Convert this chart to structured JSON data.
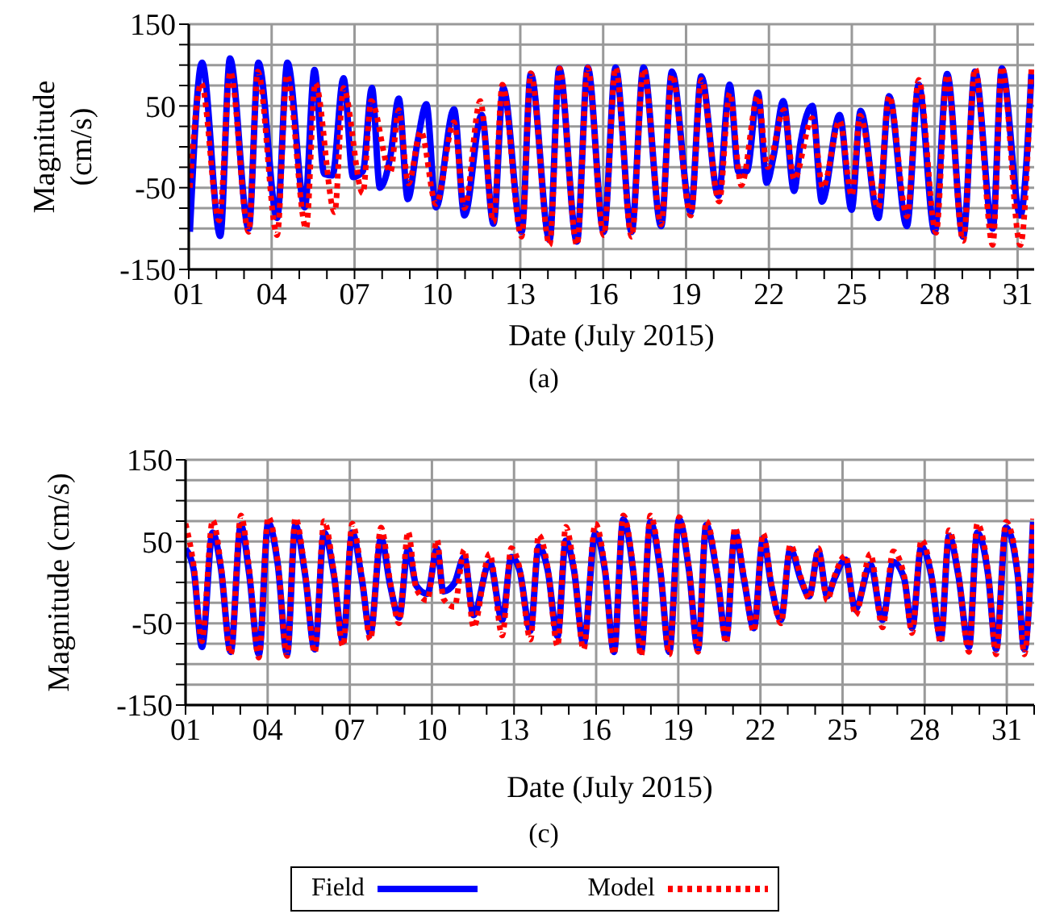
{
  "chart_data": [
    {
      "type": "line",
      "xlabel": "Date (July 2015)",
      "ylabel": "Magnitude (cm/s)",
      "annotations": [
        "(a)"
      ],
      "xlim": [
        1,
        31.6
      ],
      "ylim": [
        -150,
        150
      ],
      "xticks": [
        {
          "value": 1,
          "label": "01"
        },
        {
          "value": 2,
          "label": null
        },
        {
          "value": 3,
          "label": null
        },
        {
          "value": 4,
          "label": "04"
        },
        {
          "value": 5,
          "label": null
        },
        {
          "value": 6,
          "label": null
        },
        {
          "value": 7,
          "label": "07"
        },
        {
          "value": 8,
          "label": null
        },
        {
          "value": 9,
          "label": null
        },
        {
          "value": 10,
          "label": "10"
        },
        {
          "value": 11,
          "label": null
        },
        {
          "value": 12,
          "label": null
        },
        {
          "value": 13,
          "label": "13"
        },
        {
          "value": 14,
          "label": null
        },
        {
          "value": 15,
          "label": null
        },
        {
          "value": 16,
          "label": "16"
        },
        {
          "value": 17,
          "label": null
        },
        {
          "value": 18,
          "label": null
        },
        {
          "value": 19,
          "label": "19"
        },
        {
          "value": 20,
          "label": null
        },
        {
          "value": 21,
          "label": null
        },
        {
          "value": 22,
          "label": "22"
        },
        {
          "value": 23,
          "label": null
        },
        {
          "value": 24,
          "label": null
        },
        {
          "value": 25,
          "label": "25"
        },
        {
          "value": 26,
          "label": null
        },
        {
          "value": 27,
          "label": null
        },
        {
          "value": 28,
          "label": "28"
        },
        {
          "value": 29,
          "label": null
        },
        {
          "value": 30,
          "label": null
        },
        {
          "value": 31,
          "label": "31"
        }
      ],
      "yticks": [
        150,
        {
          "value": 125,
          "label": null
        },
        {
          "value": 100,
          "label": null
        },
        {
          "value": 75,
          "label": null
        },
        50,
        {
          "value": 25,
          "label": null
        },
        {
          "value": 0,
          "label": null
        },
        {
          "value": -25,
          "label": null
        },
        -50,
        {
          "value": -75,
          "label": null
        },
        {
          "value": -100,
          "label": null
        },
        {
          "value": -125,
          "label": null
        },
        -150
      ],
      "grid": true,
      "legend": false,
      "series": [
        {
          "color": "#0000ff",
          "line_style": "solid",
          "x": [
            1.04,
            1.48,
            2.14,
            2.49,
            3.17,
            3.52,
            4.2,
            4.57,
            5.2,
            5.55,
            5.9,
            6.2,
            6.6,
            6.95,
            7.3,
            7.63,
            7.92,
            8.3,
            8.6,
            8.93,
            9.28,
            9.6,
            9.95,
            10.6,
            10.98,
            11.6,
            12.03,
            12.38,
            13.05,
            13.38,
            14.06,
            14.41,
            15.05,
            15.44,
            16.02,
            16.45,
            17.03,
            17.46,
            18.1,
            18.49,
            19.17,
            19.55,
            20.17,
            20.58,
            20.9,
            21.2,
            21.6,
            21.92,
            22.17,
            22.52,
            22.91,
            23.15,
            23.57,
            23.92,
            24.56,
            24.99,
            25.32,
            25.96,
            26.35,
            26.99,
            27.42,
            28.0,
            28.45,
            29.03,
            29.46,
            30.1,
            30.43,
            31.1,
            31.5
          ],
          "values": [
            -104,
            103,
            -109,
            108,
            -100,
            103,
            -87,
            103,
            -74,
            94,
            -33,
            -35,
            84,
            -37,
            -30,
            72,
            -50,
            -11,
            59,
            -64,
            6,
            52,
            -74,
            46,
            -84,
            39,
            -94,
            72,
            -104,
            89,
            -114,
            96,
            -116,
            97,
            -104,
            97,
            -104,
            97,
            -97,
            92,
            -80,
            86,
            -60,
            76,
            -31,
            -30,
            66,
            -44,
            -11,
            56,
            -54,
            6,
            50,
            -67,
            39,
            -77,
            44,
            -87,
            62,
            -97,
            76,
            -104,
            89,
            -110,
            92,
            -100,
            96,
            -84,
            89
          ]
        },
        {
          "color": "#ff0000",
          "line_style": "dotted",
          "x": [
            1.04,
            1.45,
            2.1,
            2.5,
            3.17,
            3.5,
            4.2,
            4.55,
            5.25,
            5.58,
            6.28,
            6.6,
            7.3,
            7.6,
            8.3,
            8.6,
            8.95,
            9.4,
            9.95,
            10.6,
            10.98,
            11.55,
            12.03,
            12.35,
            13.05,
            13.38,
            14.06,
            14.42,
            15.05,
            15.44,
            16.02,
            16.45,
            17.03,
            17.46,
            18.1,
            18.49,
            19.17,
            19.55,
            20.2,
            20.58,
            21.0,
            21.6,
            21.95,
            22.55,
            22.91,
            23.57,
            23.95,
            24.56,
            25.0,
            25.3,
            25.96,
            26.35,
            27.0,
            27.42,
            28.05,
            28.45,
            29.03,
            29.46,
            30.1,
            30.43,
            31.1,
            31.5
          ],
          "values": [
            -50,
            78,
            -90,
            92,
            -104,
            92,
            -108,
            88,
            -100,
            78,
            -80,
            72,
            -57,
            56,
            -31,
            45,
            -45,
            19,
            -70,
            30,
            -75,
            56,
            -92,
            76,
            -110,
            90,
            -120,
            96,
            -120,
            97,
            -108,
            97,
            -110,
            95,
            -95,
            88,
            -84,
            82,
            -67,
            66,
            -47,
            62,
            -25,
            45,
            -40,
            35,
            -50,
            32,
            -60,
            38,
            -75,
            62,
            -85,
            82,
            -105,
            88,
            -115,
            96,
            -120,
            98,
            -120,
            95
          ]
        }
      ]
    },
    {
      "type": "line",
      "xlabel": "Date (July 2015)",
      "ylabel": "Magnitude (cm/s)",
      "annotations": [
        "(c)"
      ],
      "xlim": [
        1,
        32
      ],
      "ylim": [
        -150,
        150
      ],
      "xticks": [
        {
          "value": 1,
          "label": "01"
        },
        {
          "value": 2,
          "label": null
        },
        {
          "value": 3,
          "label": null
        },
        {
          "value": 4,
          "label": "04"
        },
        {
          "value": 5,
          "label": null
        },
        {
          "value": 6,
          "label": null
        },
        {
          "value": 7,
          "label": "07"
        },
        {
          "value": 8,
          "label": null
        },
        {
          "value": 9,
          "label": null
        },
        {
          "value": 10,
          "label": "10"
        },
        {
          "value": 11,
          "label": null
        },
        {
          "value": 12,
          "label": null
        },
        {
          "value": 13,
          "label": "13"
        },
        {
          "value": 14,
          "label": null
        },
        {
          "value": 15,
          "label": null
        },
        {
          "value": 16,
          "label": "16"
        },
        {
          "value": 17,
          "label": null
        },
        {
          "value": 18,
          "label": null
        },
        {
          "value": 19,
          "label": "19"
        },
        {
          "value": 20,
          "label": null
        },
        {
          "value": 21,
          "label": null
        },
        {
          "value": 22,
          "label": "22"
        },
        {
          "value": 23,
          "label": null
        },
        {
          "value": 24,
          "label": null
        },
        {
          "value": 25,
          "label": "25"
        },
        {
          "value": 26,
          "label": null
        },
        {
          "value": 27,
          "label": null
        },
        {
          "value": 28,
          "label": "28"
        },
        {
          "value": 29,
          "label": null
        },
        {
          "value": 30,
          "label": null
        },
        {
          "value": 31,
          "label": "31"
        },
        {
          "value": 32,
          "label": null
        }
      ],
      "yticks": [
        150,
        {
          "value": 125,
          "label": null
        },
        {
          "value": 100,
          "label": null
        },
        {
          "value": 75,
          "label": null
        },
        50,
        {
          "value": 25,
          "label": null
        },
        {
          "value": 0,
          "label": null
        },
        {
          "value": -25,
          "label": null
        },
        -50,
        {
          "value": -75,
          "label": null
        },
        {
          "value": -100,
          "label": null
        },
        {
          "value": -125,
          "label": null
        },
        -150
      ],
      "grid": true,
      "legend": "bottom",
      "series": [
        {
          "name": "Field",
          "color": "#0000ff",
          "line_style": "solid",
          "x": [
            1.0,
            1.3,
            1.6,
            1.99,
            2.29,
            2.65,
            3.02,
            3.32,
            3.68,
            4.02,
            4.37,
            4.71,
            5.01,
            5.37,
            5.72,
            6.06,
            6.42,
            6.75,
            7.09,
            7.45,
            7.75,
            8.14,
            8.48,
            8.8,
            9.13,
            9.43,
            9.83,
            10.19,
            10.42,
            10.82,
            11.18,
            11.52,
            12.11,
            12.57,
            12.9,
            13.2,
            13.6,
            13.9,
            14.23,
            14.59,
            14.89,
            15.19,
            15.54,
            15.97,
            16.32,
            16.65,
            16.99,
            17.35,
            17.64,
            17.98,
            18.34,
            18.67,
            19.03,
            19.39,
            19.72,
            20.02,
            20.42,
            20.75,
            21.07,
            21.41,
            21.76,
            22.1,
            22.4,
            22.75,
            23.09,
            23.49,
            23.78,
            24.12,
            24.44,
            24.71,
            25.11,
            25.47,
            26.02,
            26.46,
            26.85,
            27.25,
            27.54,
            27.88,
            28.24,
            28.59,
            28.89,
            29.23,
            29.62,
            29.92,
            30.32,
            30.61,
            30.97,
            31.4,
            31.64,
            31.96
          ],
          "values": [
            41,
            15,
            -79,
            61,
            18,
            -85,
            70,
            12,
            -88,
            73,
            22,
            -88,
            70,
            9,
            -82,
            61,
            9,
            -72,
            61,
            2,
            -63,
            54,
            -4,
            -43,
            41,
            -4,
            -14,
            41,
            -11,
            -1,
            31,
            -40,
            25,
            -46,
            31,
            15,
            -59,
            44,
            15,
            -66,
            51,
            15,
            -75,
            60,
            15,
            -85,
            77,
            15,
            -85,
            74,
            15,
            -85,
            77,
            15,
            -82,
            70,
            9,
            -69,
            61,
            2,
            -56,
            54,
            -4,
            -46,
            41,
            2,
            -17,
            38,
            -17,
            5,
            28,
            -33,
            22,
            -46,
            25,
            5,
            -56,
            44,
            9,
            -69,
            57,
            9,
            -79,
            61,
            9,
            -82,
            67,
            9,
            -82,
            74
          ]
        },
        {
          "name": "Model",
          "color": "#ff0000",
          "line_style": "dotted",
          "x": [
            1.0,
            1.3,
            1.6,
            1.99,
            2.29,
            2.65,
            3.02,
            3.32,
            3.68,
            4.02,
            4.37,
            4.71,
            5.01,
            5.37,
            5.72,
            6.06,
            6.42,
            6.75,
            7.09,
            7.45,
            7.75,
            8.14,
            8.48,
            8.8,
            9.13,
            9.43,
            9.83,
            10.19,
            10.42,
            10.82,
            11.18,
            11.52,
            12.11,
            12.57,
            12.9,
            13.2,
            13.6,
            13.9,
            14.23,
            14.59,
            14.89,
            15.19,
            15.54,
            15.97,
            16.32,
            16.65,
            16.99,
            17.35,
            17.64,
            17.98,
            18.34,
            18.67,
            19.03,
            19.39,
            19.72,
            20.02,
            20.42,
            20.75,
            21.07,
            21.41,
            21.76,
            22.1,
            22.4,
            22.75,
            23.09,
            23.49,
            23.78,
            24.12,
            24.44,
            24.71,
            25.11,
            25.47,
            26.02,
            26.46,
            26.85,
            27.25,
            27.54,
            27.88,
            28.24,
            28.59,
            28.89,
            29.23,
            29.62,
            29.92,
            30.32,
            30.61,
            30.97,
            31.4,
            31.64,
            31.96
          ],
          "values": [
            72,
            20,
            -72,
            76,
            22,
            -88,
            82,
            18,
            -92,
            80,
            25,
            -90,
            79,
            12,
            -86,
            75,
            12,
            -78,
            72,
            5,
            -70,
            67,
            0,
            -50,
            62,
            -8,
            -22,
            52,
            -20,
            -30,
            40,
            -55,
            35,
            -65,
            42,
            18,
            -70,
            58,
            18,
            -78,
            68,
            18,
            -82,
            72,
            18,
            -88,
            82,
            18,
            -90,
            82,
            18,
            -88,
            80,
            18,
            -85,
            75,
            12,
            -74,
            67,
            5,
            -60,
            60,
            -2,
            -50,
            46,
            5,
            -20,
            42,
            -22,
            8,
            33,
            -40,
            35,
            -55,
            38,
            8,
            -62,
            52,
            12,
            -74,
            64,
            12,
            -85,
            72,
            12,
            -88,
            74,
            12,
            -88,
            78
          ]
        }
      ]
    }
  ]
}
